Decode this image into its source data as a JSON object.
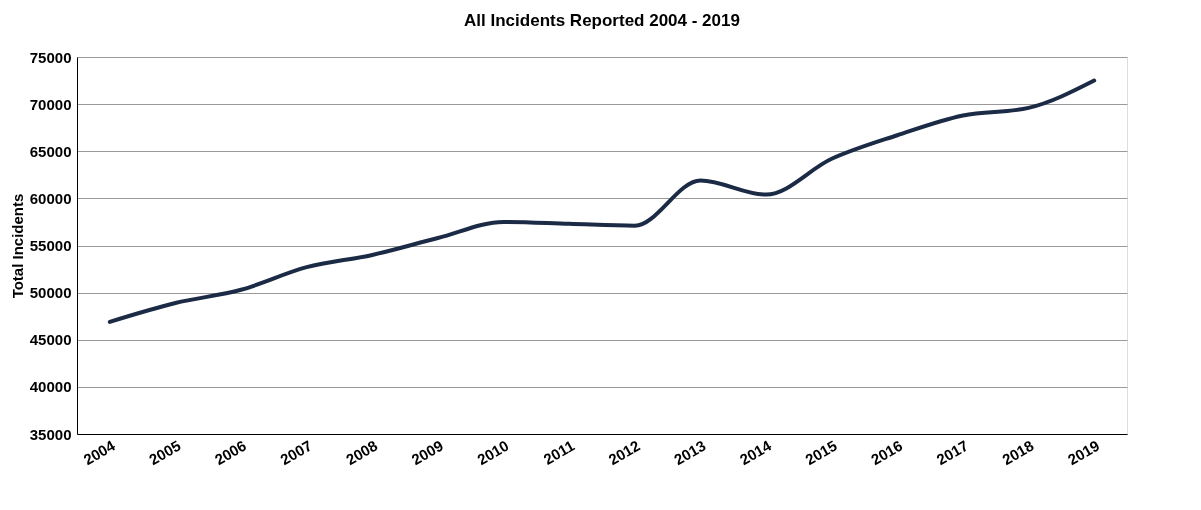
{
  "chart_data": {
    "type": "line",
    "title": "All Incidents Reported 2004 - 2019",
    "ylabel": "Total Incidents",
    "categories": [
      "2004",
      "2005",
      "2006",
      "2007",
      "2008",
      "2009",
      "2010",
      "2011",
      "2012",
      "2013",
      "2014",
      "2015",
      "2016",
      "2017",
      "2018",
      "2019"
    ],
    "series": [
      {
        "color": "#1b2a45",
        "values": [
          46900,
          48900,
          50300,
          52700,
          54000,
          55800,
          57500,
          57300,
          57100,
          61900,
          60400,
          64200,
          66700,
          68800,
          69600,
          72500
        ]
      }
    ],
    "ylim": [
      35000,
      75000
    ],
    "yticks": [
      35000,
      40000,
      45000,
      50000,
      55000,
      60000,
      65000,
      70000,
      75000
    ],
    "grid": "y",
    "legend": false,
    "marker": "none",
    "line_style": "solid"
  }
}
